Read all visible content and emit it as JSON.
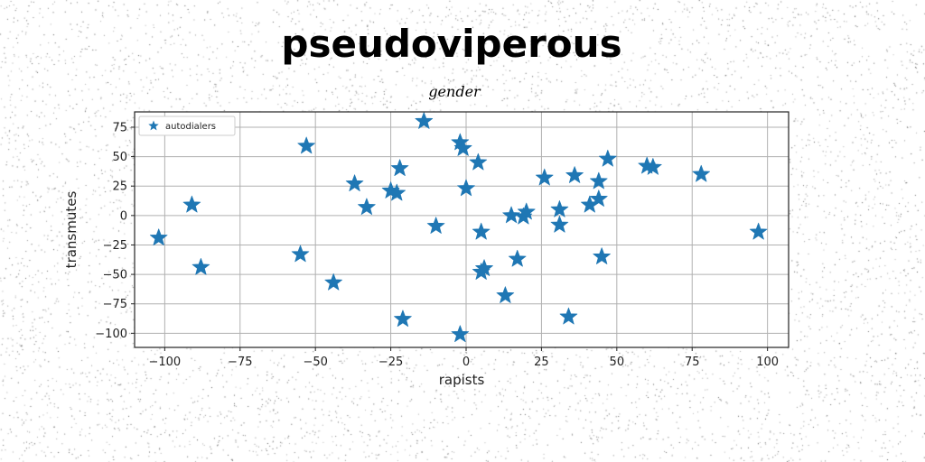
{
  "chart_data": {
    "type": "scatter",
    "title": "pseudoviperous",
    "subtitle": "gender",
    "xlabel": "rapists",
    "ylabel": "transmutes",
    "xlim": [
      -110,
      107
    ],
    "ylim": [
      -112,
      88
    ],
    "xticks": [
      -100,
      -75,
      -50,
      -25,
      0,
      25,
      50,
      75,
      100
    ],
    "yticks": [
      -100,
      -75,
      -50,
      -25,
      0,
      25,
      50,
      75
    ],
    "grid": true,
    "legend_position": "top-left",
    "marker": "star",
    "series": [
      {
        "name": "autodialers",
        "color": "#1f77b4",
        "points": [
          {
            "x": -102,
            "y": -19
          },
          {
            "x": -91,
            "y": 9
          },
          {
            "x": -88,
            "y": -44
          },
          {
            "x": -55,
            "y": -33
          },
          {
            "x": -53,
            "y": 59
          },
          {
            "x": -44,
            "y": -57
          },
          {
            "x": -37,
            "y": 27
          },
          {
            "x": -33,
            "y": 7
          },
          {
            "x": -22,
            "y": 40
          },
          {
            "x": -25,
            "y": 21
          },
          {
            "x": -23,
            "y": 19
          },
          {
            "x": -21,
            "y": -88
          },
          {
            "x": -14,
            "y": 80
          },
          {
            "x": -10,
            "y": -9
          },
          {
            "x": -2,
            "y": 62
          },
          {
            "x": -1,
            "y": 57
          },
          {
            "x": -2,
            "y": -101
          },
          {
            "x": 0,
            "y": 23
          },
          {
            "x": 4,
            "y": 45
          },
          {
            "x": 5,
            "y": -14
          },
          {
            "x": 5,
            "y": -48
          },
          {
            "x": 6,
            "y": -45
          },
          {
            "x": 13,
            "y": -68
          },
          {
            "x": 15,
            "y": 0
          },
          {
            "x": 17,
            "y": -37
          },
          {
            "x": 19,
            "y": -1
          },
          {
            "x": 20,
            "y": 3
          },
          {
            "x": 26,
            "y": 32
          },
          {
            "x": 31,
            "y": 5
          },
          {
            "x": 31,
            "y": -8
          },
          {
            "x": 34,
            "y": -86
          },
          {
            "x": 36,
            "y": 34
          },
          {
            "x": 41,
            "y": 9
          },
          {
            "x": 44,
            "y": 29
          },
          {
            "x": 44,
            "y": 14
          },
          {
            "x": 45,
            "y": -35
          },
          {
            "x": 47,
            "y": 48
          },
          {
            "x": 60,
            "y": 42
          },
          {
            "x": 62,
            "y": 41
          },
          {
            "x": 78,
            "y": 35
          },
          {
            "x": 97,
            "y": -14
          }
        ]
      }
    ]
  }
}
